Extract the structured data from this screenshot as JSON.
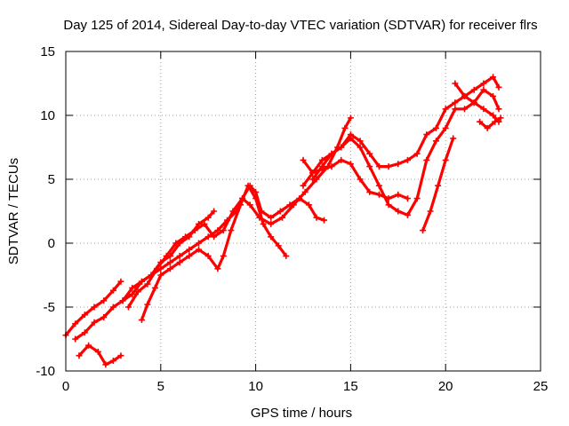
{
  "chart_data": {
    "type": "scatter",
    "title": "Day 125 of 2014, Sidereal Day-to-day VTEC variation (SDTVAR) for receiver flrs",
    "xlabel": "GPS time / hours",
    "ylabel": "SDTVAR / TECUs",
    "xlim": [
      0,
      25
    ],
    "ylim": [
      -10,
      15
    ],
    "xticks": [
      "0",
      "5",
      "10",
      "15",
      "20",
      "25"
    ],
    "yticks": [
      "-10",
      "-5",
      "0",
      "5",
      "10",
      "15"
    ],
    "grid": true,
    "legend": "none",
    "marker": "plus",
    "color": "#ff0000",
    "series": [
      {
        "x": [
          0.0,
          0.5,
          1.0,
          1.5,
          2.0,
          2.5,
          2.9
        ],
        "y": [
          -7.2,
          -6.3,
          -5.6,
          -5.0,
          -4.5,
          -3.7,
          -3.0
        ]
      },
      {
        "x": [
          0.5,
          1.0,
          1.5,
          2.0,
          2.5,
          3.0,
          3.5,
          4.0,
          4.5,
          5.0,
          5.5,
          6.0,
          6.5,
          7.0,
          7.5,
          7.8
        ],
        "y": [
          -7.5,
          -7.0,
          -6.2,
          -5.8,
          -5.0,
          -4.5,
          -4.0,
          -3.0,
          -2.5,
          -1.5,
          -1.0,
          0.0,
          0.5,
          1.5,
          2.0,
          2.5
        ]
      },
      {
        "x": [
          0.7,
          1.2,
          1.7,
          2.1,
          2.5,
          2.9
        ],
        "y": [
          -8.8,
          -8.0,
          -8.5,
          -9.5,
          -9.2,
          -8.8
        ]
      },
      {
        "x": [
          3.0,
          3.5,
          4.0,
          4.5,
          5.0,
          5.5,
          6.0,
          6.5,
          7.0,
          7.5,
          8.0,
          8.5,
          9.0,
          9.3,
          9.7,
          10.0,
          10.3,
          10.8,
          11.3,
          11.8,
          12.3,
          12.8,
          13.2,
          13.6
        ],
        "y": [
          -4.5,
          -3.5,
          -3.0,
          -2.5,
          -2.0,
          -1.5,
          -1.0,
          -0.5,
          0.0,
          0.5,
          1.0,
          1.8,
          2.5,
          3.5,
          4.5,
          4.0,
          2.5,
          2.0,
          2.5,
          3.0,
          3.5,
          3.0,
          2.0,
          1.8
        ]
      },
      {
        "x": [
          4.0,
          4.3,
          4.7,
          5.0,
          5.5,
          6.0,
          6.5,
          7.0,
          7.5,
          8.0,
          8.3,
          8.7,
          9.2,
          9.6,
          10.0,
          10.4,
          10.8,
          11.2,
          11.6
        ],
        "y": [
          -6.0,
          -4.8,
          -3.5,
          -2.5,
          -2.0,
          -1.5,
          -1.0,
          -0.5,
          -1.0,
          -2.0,
          -1.0,
          1.0,
          3.0,
          4.5,
          3.5,
          1.5,
          0.5,
          -0.2,
          -1.0
        ]
      },
      {
        "x": [
          3.3,
          3.8,
          4.3,
          4.8,
          5.3,
          5.8,
          6.3,
          6.8,
          7.3,
          7.8,
          8.3,
          8.8,
          9.3,
          9.7,
          10.2,
          10.8,
          11.4,
          12.0,
          12.6,
          13.2,
          13.8,
          14.3,
          14.7,
          15.0
        ],
        "y": [
          -5.0,
          -3.8,
          -3.2,
          -2.0,
          -1.0,
          0.0,
          0.5,
          1.0,
          1.5,
          0.5,
          1.0,
          2.5,
          3.5,
          3.0,
          2.0,
          1.5,
          2.0,
          3.0,
          4.0,
          5.0,
          6.0,
          7.5,
          9.0,
          9.8
        ]
      },
      {
        "x": [
          12.5,
          13.0,
          13.5,
          14.0,
          14.5,
          15.0,
          15.5,
          16.0,
          16.5,
          17.0,
          17.5,
          18.0,
          18.5,
          19.0,
          19.5,
          20.0,
          20.5,
          21.0,
          21.5,
          22.0,
          22.5,
          22.8
        ],
        "y": [
          6.5,
          5.5,
          6.5,
          7.0,
          7.5,
          8.5,
          8.0,
          7.0,
          6.0,
          6.0,
          6.2,
          6.5,
          7.0,
          8.5,
          9.0,
          10.5,
          11.0,
          11.5,
          11.0,
          10.5,
          10.0,
          9.5
        ]
      },
      {
        "x": [
          12.5,
          13.0,
          13.5,
          14.0,
          14.5,
          15.0,
          15.5,
          16.0,
          16.5,
          17.0,
          17.5,
          18.0
        ],
        "y": [
          4.5,
          5.5,
          5.8,
          6.0,
          6.5,
          6.2,
          5.0,
          4.0,
          3.8,
          3.5,
          3.8,
          3.5
        ]
      },
      {
        "x": [
          13.0,
          13.5,
          14.0,
          14.5,
          15.0,
          15.5,
          16.0,
          16.5,
          17.0,
          17.5,
          18.0,
          18.5,
          19.0,
          19.5,
          20.0,
          20.5,
          21.0,
          21.5,
          22.0,
          22.5,
          22.8
        ],
        "y": [
          5.0,
          6.0,
          7.0,
          7.5,
          8.2,
          7.5,
          6.0,
          4.5,
          3.0,
          2.5,
          2.2,
          3.5,
          6.5,
          8.0,
          9.0,
          10.5,
          10.5,
          11.0,
          12.0,
          11.5,
          10.5
        ]
      },
      {
        "x": [
          18.8,
          19.2,
          19.6,
          20.0,
          20.4
        ],
        "y": [
          1.0,
          2.5,
          4.5,
          6.5,
          8.2
        ]
      },
      {
        "x": [
          20.5,
          21.0,
          21.5,
          22.0,
          22.5,
          22.8
        ],
        "y": [
          12.5,
          11.5,
          12.0,
          12.5,
          13.0,
          12.2
        ]
      },
      {
        "x": [
          21.8,
          22.2,
          22.6,
          22.9
        ],
        "y": [
          9.5,
          9.0,
          9.5,
          9.8
        ]
      }
    ]
  }
}
